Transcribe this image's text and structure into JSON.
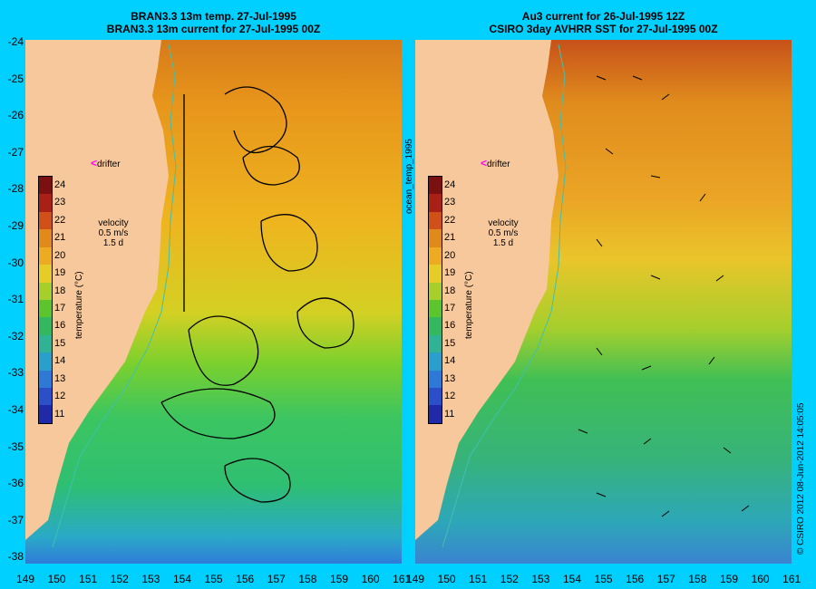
{
  "left_panel": {
    "title_line1": "BRAN3.3 13m temp. 27-Jul-1995",
    "title_line2": "BRAN3.3 13m current for 27-Jul-1995 00Z",
    "drifter_label": "drifter",
    "velocity_label": "velocity",
    "velocity_speed": "0.5 m/s",
    "velocity_time": "1.5 d"
  },
  "right_panel": {
    "title_line1": "Au3 current for 26-Jul-1995 12Z",
    "title_line2": "CSIRO 3day AVHRR SST for 27-Jul-1995 00Z",
    "drifter_label": "drifter",
    "velocity_label": "velocity",
    "velocity_speed": "0.5 m/s",
    "velocity_time": "1.5 d"
  },
  "side_label": "ocean_temp_1995",
  "credit": "© CSIRO 2012  08-Jun-2012 14:05:05",
  "colorbar": {
    "title": "temperature (°C)",
    "ticks": [
      "24",
      "23",
      "22",
      "21",
      "20",
      "19",
      "18",
      "17",
      "16",
      "15",
      "14",
      "13",
      "12",
      "11"
    ]
  },
  "axes": {
    "lat_labels": [
      "-24",
      "-25",
      "-26",
      "-27",
      "-28",
      "-29",
      "-30",
      "-31",
      "-32",
      "-33",
      "-34",
      "-35",
      "-36",
      "-37",
      "-38"
    ],
    "lon_labels": [
      "149",
      "150",
      "151",
      "152",
      "153",
      "154",
      "155",
      "156",
      "157",
      "158",
      "159",
      "160",
      "161"
    ]
  },
  "colors": {
    "background": "#00d0ff",
    "land": "#f7c89b",
    "coast_line": "#40c0b0",
    "drifter_marker": "#ff00ff"
  }
}
